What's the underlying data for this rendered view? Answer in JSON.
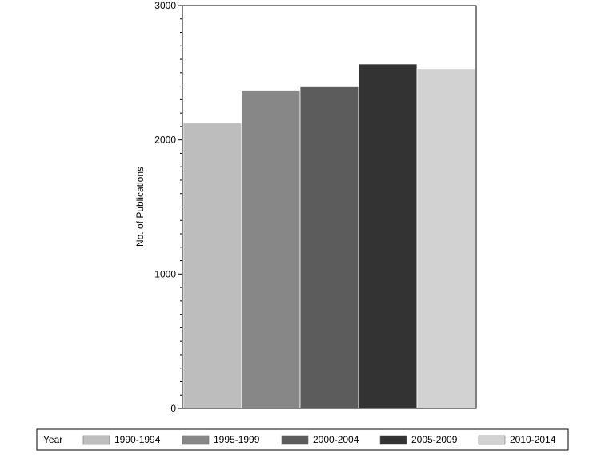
{
  "chart_data": {
    "type": "bar",
    "categories": [
      "1990-1994",
      "1995-1999",
      "2000-2004",
      "2005-2009",
      "2010-2014"
    ],
    "values": [
      2125,
      2365,
      2395,
      2565,
      2530
    ],
    "colors": [
      "#bdbdbd",
      "#878787",
      "#5c5c5c",
      "#333333",
      "#d2d2d2"
    ],
    "ylabel": "No. of Publications",
    "xlabel": "",
    "title": "",
    "ylim": [
      0,
      3000
    ],
    "yticks": [
      0,
      1000,
      2000,
      3000
    ],
    "grid": false,
    "legend": {
      "title": "Year",
      "placement": "bottom",
      "entries": [
        "1990-1994",
        "1995-1999",
        "2000-2004",
        "2005-2009",
        "2010-2014"
      ]
    }
  }
}
